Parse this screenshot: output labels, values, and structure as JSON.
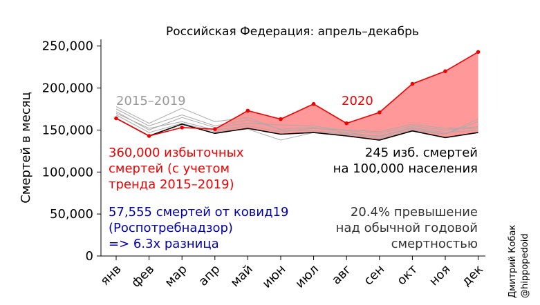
{
  "chart_data": {
    "type": "line",
    "title": "Российская Федерация: апрель–декабрь",
    "ylabel": "Смертей в месяц",
    "xlabel": "",
    "categories": [
      "янв",
      "фев",
      "мар",
      "апр",
      "май",
      "июн",
      "июл",
      "авг",
      "сен",
      "окт",
      "ноя",
      "дек"
    ],
    "ylim": [
      0,
      258000
    ],
    "yticks": [
      0,
      50000,
      100000,
      150000,
      200000,
      250000
    ],
    "ytick_labels": [
      "0",
      "50,000",
      "100,000",
      "150,000",
      "200,000",
      "250,000"
    ],
    "series_2020": {
      "name": "2020",
      "color": "#ee0000",
      "values": [
        164000,
        143000,
        153000,
        151000,
        173000,
        163000,
        181000,
        158000,
        171000,
        205000,
        220000,
        243000
      ]
    },
    "baseline": {
      "color": "#000000",
      "values": [
        164000,
        143000,
        157000,
        146000,
        152000,
        145000,
        147000,
        143000,
        138000,
        149000,
        141000,
        147000
      ]
    },
    "historic_series": {
      "name": "2015–2019",
      "color": "#aaaaaa",
      "lines": [
        [
          178000,
          158000,
          176000,
          160000,
          165000,
          150000,
          149000,
          146000,
          140000,
          150000,
          145000,
          163000
        ],
        [
          175000,
          155000,
          168000,
          155000,
          162000,
          151000,
          153000,
          147000,
          142000,
          152000,
          145000,
          160000
        ],
        [
          172000,
          150000,
          165000,
          153000,
          158000,
          156000,
          155000,
          149000,
          146000,
          155000,
          150000,
          154000
        ],
        [
          170000,
          152000,
          160000,
          150000,
          155000,
          148000,
          152000,
          150000,
          148000,
          157000,
          152000,
          152000
        ],
        [
          168000,
          147000,
          158000,
          148000,
          151000,
          138000,
          147000,
          145000,
          143000,
          153000,
          147000,
          150000
        ]
      ]
    },
    "fill": {
      "color": "#ff9999",
      "from_index": 3
    },
    "annotations": {
      "label_hist": "2015–2019",
      "label_2020": "2020",
      "excess_line1": "360,000 избыточных",
      "excess_line2": "смертей (с учетом",
      "excess_line3": "тренда 2015–2019)",
      "rate_line1": "245 изб. смертей",
      "rate_line2": "на 100,000 населения",
      "covid_line1": "57,555 смертей от ковид19",
      "covid_line2": "(Роспотребнадзор)",
      "covid_line3": "=> 6.3x разница",
      "pct_line1": "20.4% превышение",
      "pct_line2": "над обычной годовой",
      "pct_line3": "смертностью",
      "author_line1": "Дмитрий Кобак",
      "author_line2": "@hippopedoid"
    },
    "colors": {
      "red_text": "#ee0000",
      "blue_text": "#0000aa",
      "dark_text": "#333333",
      "gray_text": "#999999"
    },
    "grid": false,
    "legend": "none"
  }
}
